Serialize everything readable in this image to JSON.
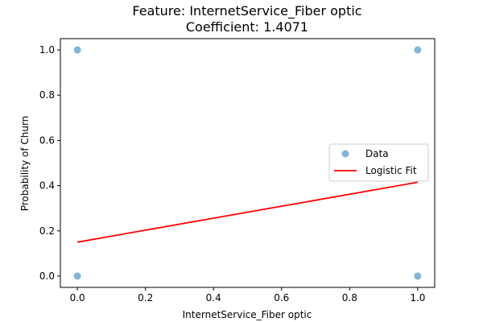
{
  "chart_data": {
    "type": "scatter",
    "title": "Feature: InternetService_Fiber optic",
    "subtitle": "Coefficient: 1.4071",
    "xlabel": "InternetService_Fiber optic",
    "ylabel": "Probability of Churn",
    "xlim": [
      -0.05,
      1.05
    ],
    "ylim": [
      -0.05,
      1.05
    ],
    "x_ticks": [
      0.0,
      0.2,
      0.4,
      0.6,
      0.8,
      1.0
    ],
    "x_tick_labels": [
      "0.0",
      "0.2",
      "0.4",
      "0.6",
      "0.8",
      "1.0"
    ],
    "y_ticks": [
      0.0,
      0.2,
      0.4,
      0.6,
      0.8,
      1.0
    ],
    "y_tick_labels": [
      "0.0",
      "0.2",
      "0.4",
      "0.6",
      "0.8",
      "1.0"
    ],
    "grid": false,
    "legend_position": "center-right",
    "series": [
      {
        "name": "Data",
        "kind": "scatter",
        "color": "#1f77b4",
        "points": [
          {
            "x": 0,
            "y": 1
          },
          {
            "x": 1,
            "y": 1
          },
          {
            "x": 0,
            "y": 0
          },
          {
            "x": 1,
            "y": 0
          }
        ]
      },
      {
        "name": "Logistic Fit",
        "kind": "line",
        "color": "#ff0000",
        "points": [
          {
            "x": 0,
            "y": 0.15
          },
          {
            "x": 1,
            "y": 0.415
          }
        ]
      }
    ]
  }
}
